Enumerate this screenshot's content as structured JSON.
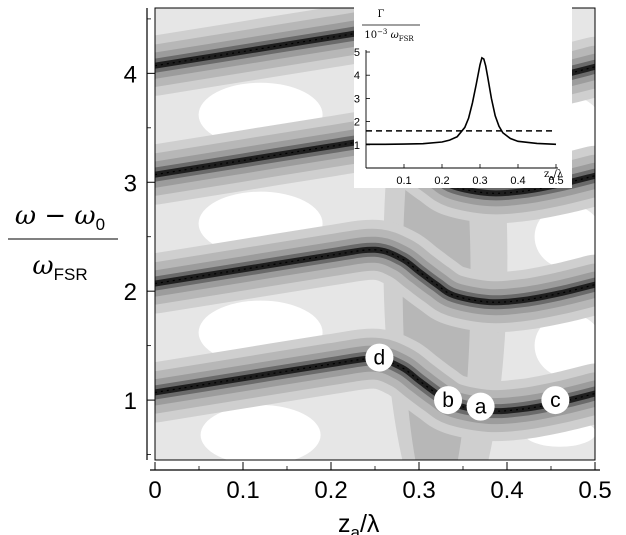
{
  "chart_data": [
    {
      "type": "heatmap",
      "xlabel": "z",
      "xlabel_sub": "a",
      "xlabel_tail": "/λ",
      "ylabel_top": "ω − ω",
      "ylabel_top_sub": "0",
      "ylabel_bottom": "ω",
      "ylabel_bottom_sub": "FSR",
      "xlim": [
        0,
        0.5
      ],
      "ylim": [
        0.45,
        4.6
      ],
      "x_ticks": [
        "0",
        "0.1",
        "0.2",
        "0.3",
        "0.4",
        "0.5"
      ],
      "y_ticks": [
        "1",
        "2",
        "3",
        "4"
      ],
      "x_tick_values": [
        0,
        0.1,
        0.2,
        0.3,
        0.4,
        0.5
      ],
      "y_tick_values": [
        1,
        2,
        3,
        4
      ],
      "grayscale_levels": [
        "#ffffff",
        "#e6e6e6",
        "#cfcfcf",
        "#b7b7b7",
        "#9c9c9c",
        "#6a6a6a",
        "#1e1e1e"
      ],
      "resonance_branches": [
        {
          "x": [
            0,
            0.1,
            0.2,
            0.25,
            0.28,
            0.3,
            0.32,
            0.34,
            0.38,
            0.42,
            0.46,
            0.5
          ],
          "y": [
            1.07,
            1.2,
            1.33,
            1.38,
            1.3,
            1.18,
            1.06,
            0.96,
            0.9,
            0.92,
            0.98,
            1.06
          ]
        },
        {
          "x": [
            0,
            0.1,
            0.2,
            0.25,
            0.28,
            0.3,
            0.32,
            0.34,
            0.38,
            0.42,
            0.46,
            0.5
          ],
          "y": [
            2.07,
            2.2,
            2.33,
            2.38,
            2.3,
            2.18,
            2.06,
            1.96,
            1.9,
            1.92,
            1.98,
            2.06
          ]
        },
        {
          "x": [
            0,
            0.1,
            0.2,
            0.25,
            0.28,
            0.3,
            0.32,
            0.34,
            0.38,
            0.42,
            0.46,
            0.5
          ],
          "y": [
            3.07,
            3.2,
            3.33,
            3.38,
            3.3,
            3.18,
            3.06,
            2.96,
            2.9,
            2.92,
            2.98,
            3.06
          ]
        },
        {
          "x": [
            0,
            0.1,
            0.2,
            0.25,
            0.28,
            0.3,
            0.32,
            0.34,
            0.38,
            0.42,
            0.46,
            0.5
          ],
          "y": [
            4.07,
            4.2,
            4.33,
            4.38,
            4.3,
            4.18,
            4.06,
            3.96,
            3.9,
            3.92,
            3.98,
            4.06
          ]
        }
      ],
      "annotations": [
        {
          "label": "d",
          "x": 0.255,
          "y": 1.39
        },
        {
          "label": "b",
          "x": 0.333,
          "y": 1.0
        },
        {
          "label": "a",
          "x": 0.37,
          "y": 0.94
        },
        {
          "label": "c",
          "x": 0.455,
          "y": 1.0
        }
      ]
    },
    {
      "type": "line",
      "ylabel_top": "Γ",
      "ylabel_bottom": "10",
      "ylabel_bottom_sup": "−3",
      "ylabel_bottom_tail": "ω",
      "ylabel_bottom_sub": "FSR",
      "xlabel": "z",
      "xlabel_sub": "a",
      "xlabel_tail": "/λ",
      "xlim": [
        0,
        0.5
      ],
      "ylim": [
        0,
        5
      ],
      "x_ticks": [
        "0.1",
        "0.2",
        "0.3",
        "0.4",
        "0.5"
      ],
      "y_ticks": [
        "1",
        "2",
        "3",
        "4",
        "5"
      ],
      "x_tick_values": [
        0.1,
        0.2,
        0.3,
        0.4,
        0.5
      ],
      "y_tick_values": [
        1,
        2,
        3,
        4,
        5
      ],
      "series": [
        {
          "style": "solid",
          "x": [
            0,
            0.05,
            0.1,
            0.15,
            0.2,
            0.22,
            0.24,
            0.26,
            0.27,
            0.28,
            0.29,
            0.3,
            0.305,
            0.31,
            0.315,
            0.32,
            0.33,
            0.34,
            0.35,
            0.36,
            0.38,
            0.4,
            0.45,
            0.5
          ],
          "y": [
            1.02,
            1.02,
            1.03,
            1.05,
            1.12,
            1.2,
            1.35,
            1.75,
            2.15,
            2.8,
            3.6,
            4.45,
            4.75,
            4.7,
            4.4,
            3.95,
            3.0,
            2.25,
            1.8,
            1.52,
            1.27,
            1.15,
            1.06,
            1.02
          ]
        },
        {
          "style": "dashed",
          "x": [
            0,
            0.5
          ],
          "y": [
            1.6,
            1.6
          ]
        }
      ]
    }
  ]
}
